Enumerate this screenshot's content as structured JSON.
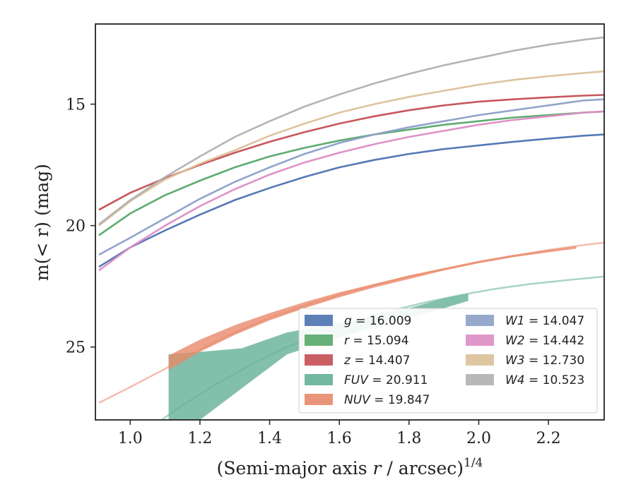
{
  "chart_data": {
    "type": "line",
    "xlabel": "(Semi-major axis r / arcsec)",
    "xlabel_superscript": "1/4",
    "ylabel": "m(< r) (mag)",
    "xlim": [
      0.9,
      2.36
    ],
    "ylim": [
      28.0,
      11.7
    ],
    "y_inverted": true,
    "x_ticks": [
      1.0,
      1.2,
      1.4,
      1.6,
      1.8,
      2.0,
      2.2
    ],
    "x_tick_labels": [
      "1.0",
      "1.2",
      "1.4",
      "1.6",
      "1.8",
      "2.0",
      "2.2"
    ],
    "y_ticks": [
      15,
      20,
      25
    ],
    "y_tick_labels": [
      "15",
      "20",
      "25"
    ],
    "grid": false,
    "legend_position": "lower-right",
    "series": [
      {
        "name": "g = 16.009",
        "color": "#4c72b0",
        "kind": "line",
        "x": [
          0.91,
          1.0,
          1.1,
          1.2,
          1.3,
          1.4,
          1.5,
          1.6,
          1.7,
          1.8,
          1.9,
          2.0,
          2.1,
          2.2,
          2.3,
          2.36
        ],
        "y": [
          21.7,
          20.9,
          20.2,
          19.55,
          18.95,
          18.45,
          18.0,
          17.6,
          17.3,
          17.05,
          16.85,
          16.7,
          16.55,
          16.42,
          16.3,
          16.25
        ]
      },
      {
        "name": "r = 15.094",
        "color": "#55a868",
        "kind": "line",
        "x": [
          0.91,
          1.0,
          1.1,
          1.2,
          1.3,
          1.4,
          1.5,
          1.6,
          1.7,
          1.8,
          1.9,
          2.0,
          2.1,
          2.2,
          2.3,
          2.36
        ],
        "y": [
          20.4,
          19.5,
          18.75,
          18.15,
          17.6,
          17.15,
          16.8,
          16.5,
          16.25,
          16.05,
          15.85,
          15.7,
          15.55,
          15.45,
          15.35,
          15.3
        ]
      },
      {
        "name": "z = 14.407",
        "color": "#c44e52",
        "kind": "line",
        "x": [
          0.91,
          1.0,
          1.1,
          1.2,
          1.3,
          1.4,
          1.5,
          1.6,
          1.7,
          1.8,
          1.9,
          2.0,
          2.1,
          2.2,
          2.3,
          2.36
        ],
        "y": [
          19.35,
          18.65,
          18.05,
          17.5,
          17.0,
          16.55,
          16.15,
          15.8,
          15.5,
          15.25,
          15.05,
          14.9,
          14.8,
          14.72,
          14.65,
          14.62
        ]
      },
      {
        "name": "FUV = 20.911",
        "color": "#64b096",
        "kind": "band",
        "x": [
          1.11,
          1.2,
          1.32,
          1.45,
          1.6,
          1.7,
          1.8,
          1.9,
          1.97
        ],
        "y_bright": [
          25.3,
          25.2,
          25.05,
          24.4,
          24.0,
          23.7,
          23.4,
          23.0,
          22.8
        ],
        "y_faint": [
          28.2,
          28.0,
          26.7,
          25.3,
          24.6,
          24.2,
          23.8,
          23.4,
          23.1
        ]
      },
      {
        "name": "NUV = 19.847",
        "color": "#e8896a",
        "kind": "band",
        "x": [
          1.11,
          1.2,
          1.3,
          1.4,
          1.5,
          1.6,
          1.7,
          1.8,
          1.9,
          2.0,
          2.1,
          2.2,
          2.28
        ],
        "y_bright": [
          25.35,
          24.7,
          24.1,
          23.6,
          23.15,
          22.75,
          22.4,
          22.05,
          21.75,
          21.45,
          21.2,
          21.0,
          20.85
        ],
        "y_faint": [
          25.95,
          25.2,
          24.5,
          23.9,
          23.4,
          22.95,
          22.55,
          22.2,
          21.85,
          21.55,
          21.3,
          21.1,
          20.95
        ]
      },
      {
        "name": "W1 = 14.047",
        "color": "#8c9fc8",
        "kind": "line",
        "x": [
          0.91,
          1.0,
          1.1,
          1.2,
          1.3,
          1.4,
          1.5,
          1.6,
          1.7,
          1.8,
          1.9,
          2.0,
          2.1,
          2.2,
          2.3,
          2.36
        ],
        "y": [
          21.2,
          20.5,
          19.7,
          18.9,
          18.2,
          17.6,
          17.05,
          16.6,
          16.25,
          15.95,
          15.7,
          15.45,
          15.25,
          15.05,
          14.85,
          14.8
        ]
      },
      {
        "name": "W2 = 14.442",
        "color": "#dd8cc4",
        "kind": "line",
        "x": [
          0.91,
          1.0,
          1.1,
          1.2,
          1.3,
          1.4,
          1.5,
          1.6,
          1.7,
          1.8,
          1.9,
          2.0,
          2.1,
          2.2,
          2.3,
          2.36
        ],
        "y": [
          21.85,
          20.9,
          20.0,
          19.2,
          18.5,
          17.9,
          17.4,
          17.0,
          16.65,
          16.35,
          16.1,
          15.85,
          15.65,
          15.5,
          15.35,
          15.3
        ]
      },
      {
        "name": "W3 = 12.730",
        "color": "#dcc099",
        "kind": "line",
        "x": [
          0.91,
          1.0,
          1.1,
          1.2,
          1.3,
          1.4,
          1.5,
          1.6,
          1.7,
          1.8,
          1.9,
          2.0,
          2.1,
          2.2,
          2.3,
          2.36
        ],
        "y": [
          20.0,
          19.0,
          18.1,
          17.45,
          16.9,
          16.3,
          15.8,
          15.35,
          15.0,
          14.7,
          14.45,
          14.2,
          14.0,
          13.85,
          13.72,
          13.65
        ]
      },
      {
        "name": "W4 = 10.523",
        "color": "#b0b0b0",
        "kind": "line",
        "x": [
          0.91,
          1.0,
          1.1,
          1.2,
          1.3,
          1.4,
          1.5,
          1.6,
          1.7,
          1.8,
          1.9,
          2.0,
          2.1,
          2.2,
          2.3,
          2.36
        ],
        "y": [
          19.95,
          18.95,
          18.0,
          17.15,
          16.35,
          15.7,
          15.1,
          14.6,
          14.15,
          13.75,
          13.4,
          13.1,
          12.8,
          12.55,
          12.35,
          12.25
        ]
      }
    ],
    "fit_curves": [
      {
        "color": "#e8896a",
        "x": [
          0.91,
          1.0,
          1.1,
          1.2,
          1.3,
          1.4,
          1.5,
          1.6,
          1.7,
          1.8,
          1.9,
          2.0,
          2.1,
          2.2,
          2.3,
          2.36
        ],
        "y": [
          27.3,
          26.65,
          25.9,
          25.1,
          24.4,
          23.8,
          23.3,
          22.85,
          22.45,
          22.1,
          21.8,
          21.5,
          21.25,
          21.0,
          20.8,
          20.7
        ]
      },
      {
        "color": "#64b096",
        "x": [
          1.06,
          1.15,
          1.25,
          1.35,
          1.45,
          1.55,
          1.65,
          1.75,
          1.85,
          1.95,
          2.05,
          2.15,
          2.25,
          2.36
        ],
        "y": [
          28.3,
          27.4,
          26.5,
          25.7,
          25.0,
          24.45,
          23.95,
          23.5,
          23.15,
          22.85,
          22.6,
          22.4,
          22.25,
          22.1
        ]
      }
    ]
  }
}
